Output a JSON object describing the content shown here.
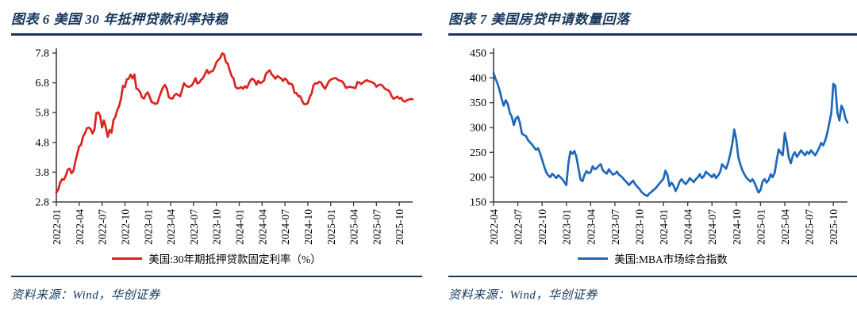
{
  "colors": {
    "navy": "#17375e",
    "axis": "#404040",
    "tick_text": "#000000",
    "red_line": "#dc231e",
    "blue_line": "#1f67bb"
  },
  "chart_data": [
    {
      "type": "line",
      "title": "图表 6  美国 30 年抵押贷款利率持稳",
      "source": "资料来源：Wind，华创证券",
      "xlabel": "",
      "ylabel": "",
      "frequency": "weekly",
      "grid": false,
      "legend_position": "bottom",
      "ylim": [
        2.8,
        7.8
      ],
      "y_ticks": [
        2.8,
        3.8,
        4.8,
        5.8,
        6.8,
        7.8
      ],
      "x_ticks": [
        "2022-01",
        "2022-04",
        "2022-07",
        "2022-10",
        "2023-01",
        "2023-04",
        "2023-07",
        "2023-10",
        "2024-01",
        "2024-04",
        "2024-07",
        "2024-10",
        "2025-01",
        "2025-04",
        "2025-07",
        "2025-10"
      ],
      "tick_step": 12,
      "series": [
        {
          "name": "美国:30年期抵押贷款固定利率（%）",
          "color": "#dc231e",
          "values": [
            3.11,
            3.22,
            3.45,
            3.56,
            3.55,
            3.69,
            3.89,
            3.92,
            3.76,
            3.85,
            4.16,
            4.42,
            4.67,
            4.72,
            5.0,
            5.1,
            5.27,
            5.3,
            5.25,
            5.1,
            5.23,
            5.78,
            5.81,
            5.7,
            5.3,
            5.54,
            5.3,
            4.99,
            5.22,
            5.13,
            5.55,
            5.66,
            5.89,
            6.02,
            6.29,
            6.7,
            6.66,
            6.92,
            6.94,
            7.08,
            6.95,
            7.08,
            6.61,
            6.58,
            6.49,
            6.31,
            6.27,
            6.42,
            6.48,
            6.33,
            6.15,
            6.13,
            6.09,
            6.12,
            6.32,
            6.5,
            6.65,
            6.73,
            6.6,
            6.32,
            6.28,
            6.27,
            6.39,
            6.43,
            6.39,
            6.35,
            6.57,
            6.79,
            6.71,
            6.67,
            6.67,
            6.71,
            6.81,
            6.96,
            6.78,
            6.81,
            6.9,
            6.96,
            7.09,
            7.23,
            7.12,
            7.18,
            7.19,
            7.31,
            7.49,
            7.57,
            7.63,
            7.79,
            7.76,
            7.5,
            7.44,
            7.22,
            7.03,
            6.95,
            6.67,
            6.61,
            6.62,
            6.66,
            6.6,
            6.69,
            6.63,
            6.77,
            6.9,
            6.94,
            6.88,
            6.74,
            6.87,
            6.79,
            6.82,
            6.88,
            7.1,
            7.17,
            7.22,
            7.09,
            7.02,
            6.94,
            7.03,
            6.99,
            6.95,
            6.86,
            6.95,
            6.89,
            6.77,
            6.78,
            6.73,
            6.47,
            6.46,
            6.35,
            6.35,
            6.2,
            6.09,
            6.08,
            6.12,
            6.32,
            6.44,
            6.72,
            6.79,
            6.78,
            6.84,
            6.81,
            6.69,
            6.6,
            6.72,
            6.85,
            6.91,
            6.93,
            6.96,
            6.95,
            6.89,
            6.87,
            6.85,
            6.76,
            6.63,
            6.65,
            6.67,
            6.65,
            6.64,
            6.62,
            6.83,
            6.81,
            6.76,
            6.81,
            6.86,
            6.89,
            6.85,
            6.84,
            6.81,
            6.77,
            6.67,
            6.72,
            6.74,
            6.72,
            6.63,
            6.58,
            6.56,
            6.5,
            6.35,
            6.26,
            6.3,
            6.34,
            6.27,
            6.3,
            6.19,
            6.17,
            6.22,
            6.24,
            6.26,
            6.25
          ]
        }
      ]
    },
    {
      "type": "line",
      "title": "图表 7  美国房贷申请数量回落",
      "source": "资料来源：Wind，华创证券",
      "xlabel": "",
      "ylabel": "",
      "frequency": "weekly",
      "grid": false,
      "legend_position": "bottom",
      "ylim": [
        150,
        450
      ],
      "y_ticks": [
        150,
        200,
        250,
        300,
        350,
        400,
        450
      ],
      "x_ticks": [
        "2022-04",
        "2022-07",
        "2022-10",
        "2023-01",
        "2023-04",
        "2023-07",
        "2023-10",
        "2024-01",
        "2024-04",
        "2024-07",
        "2024-10",
        "2025-01",
        "2025-04",
        "2025-07",
        "2025-10"
      ],
      "tick_step": 12,
      "series": [
        {
          "name": "美国:MBA市场综合指数",
          "color": "#1f67bb",
          "values": [
            410,
            398,
            388,
            375,
            358,
            344,
            355,
            348,
            330,
            322,
            305,
            318,
            322,
            310,
            288,
            285,
            283,
            275,
            270,
            266,
            260,
            255,
            258,
            248,
            235,
            222,
            210,
            204,
            200,
            207,
            203,
            198,
            204,
            200,
            196,
            190,
            184,
            228,
            252,
            247,
            253,
            240,
            218,
            195,
            192,
            205,
            212,
            208,
            210,
            222,
            216,
            218,
            223,
            226,
            214,
            210,
            207,
            216,
            210,
            205,
            207,
            211,
            205,
            202,
            198,
            193,
            189,
            184,
            189,
            193,
            186,
            181,
            177,
            171,
            167,
            164,
            162,
            167,
            170,
            174,
            177,
            182,
            187,
            192,
            197,
            213,
            204,
            182,
            189,
            183,
            172,
            180,
            191,
            196,
            190,
            186,
            191,
            198,
            194,
            190,
            196,
            200,
            206,
            198,
            202,
            211,
            207,
            204,
            200,
            206,
            198,
            203,
            210,
            226,
            221,
            217,
            229,
            246,
            266,
            296,
            276,
            241,
            226,
            214,
            206,
            199,
            195,
            191,
            196,
            189,
            179,
            169,
            174,
            191,
            196,
            189,
            194,
            206,
            200,
            209,
            234,
            256,
            249,
            244,
            289,
            268,
            239,
            228,
            244,
            250,
            241,
            247,
            254,
            249,
            244,
            251,
            247,
            254,
            249,
            244,
            251,
            259,
            269,
            264,
            274,
            289,
            309,
            329,
            388,
            384,
            330,
            314,
            344,
            336,
            318,
            310
          ]
        }
      ]
    }
  ]
}
